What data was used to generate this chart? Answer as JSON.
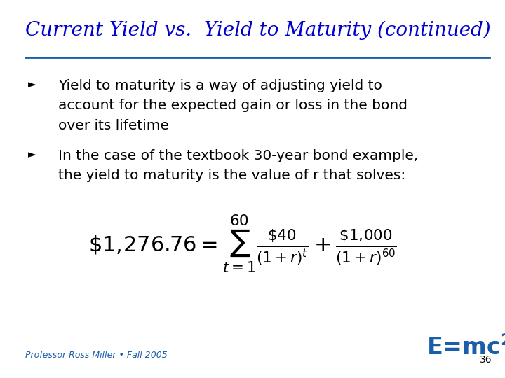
{
  "title": "Current Yield vs.  Yield to Maturity (continued)",
  "title_color": "#0000CD",
  "title_fontsize": 20,
  "slide_bg": "#FFFFFF",
  "bullet1_lines": [
    "Yield to maturity is a way of adjusting yield to",
    "account for the expected gain or loss in the bond",
    "over its lifetime"
  ],
  "bullet2_lines": [
    "In the case of the textbook 30-year bond example,",
    "the yield to maturity is the value of r that solves:"
  ],
  "formula": "$\\$1,\\!276.76 = \\sum_{t=1}^{60} \\frac{\\$40}{(1+r)^t} + \\frac{\\$1,\\!000}{(1+r)^{60}}$",
  "footer_left": "Professor Ross Miller • Fall 2005",
  "footer_page": "36",
  "text_color": "#000000",
  "footer_color": "#1A5EA8",
  "title_line_color": "#1A5EA8",
  "bullet_fontsize": 14.5,
  "formula_fontsize": 22,
  "footer_fontsize": 9,
  "emc2_fontsize": 24,
  "page_fontsize": 10
}
